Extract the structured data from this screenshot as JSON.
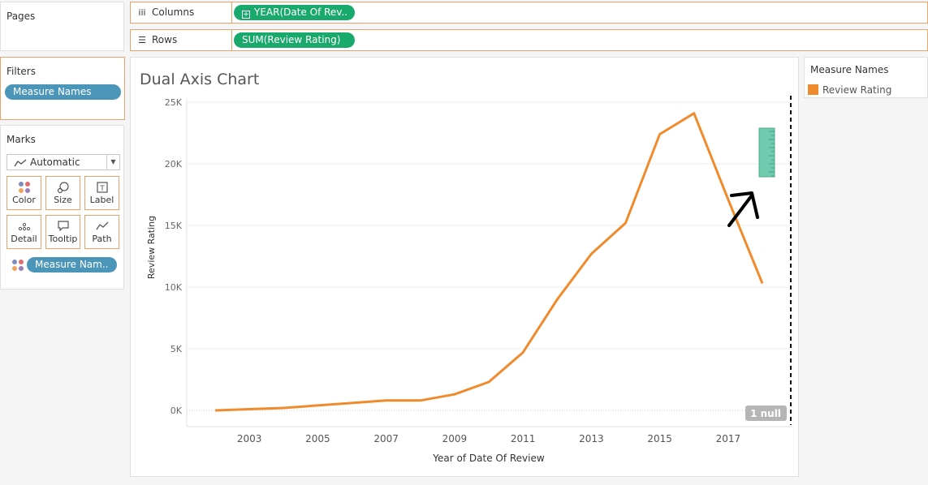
{
  "pages": {
    "title": "Pages"
  },
  "filters": {
    "title": "Filters",
    "pill": "Measure Names"
  },
  "marks": {
    "title": "Marks",
    "mark_type": "Automatic",
    "buttons": [
      {
        "name": "color",
        "label": "Color",
        "icon": "color-dots-icon"
      },
      {
        "name": "size",
        "label": "Size",
        "icon": "size-icon"
      },
      {
        "name": "label",
        "label": "Label",
        "icon": "label-icon"
      },
      {
        "name": "detail",
        "label": "Detail",
        "icon": "detail-icon"
      },
      {
        "name": "tooltip",
        "label": "Tooltip",
        "icon": "tooltip-icon"
      },
      {
        "name": "path",
        "label": "Path",
        "icon": "path-icon"
      }
    ],
    "color_pill": "Measure Nam.."
  },
  "columns": {
    "label": "Columns",
    "pill": "YEAR(Date Of Rev.."
  },
  "rows": {
    "label": "Rows",
    "pill": "SUM(Review Rating)"
  },
  "legend": {
    "title": "Measure Names",
    "item": "Review Rating",
    "color": "#f08b2d"
  },
  "null_badge": "1 null",
  "chart_data": {
    "type": "line",
    "title": "Dual Axis Chart",
    "xlabel": "Year of Date Of Review",
    "ylabel": "Review Rating",
    "x": [
      2002,
      2003,
      2004,
      2005,
      2006,
      2007,
      2008,
      2009,
      2010,
      2011,
      2012,
      2013,
      2014,
      2015,
      2016,
      2017,
      2018
    ],
    "series": [
      {
        "name": "Review Rating",
        "color": "#f08b2d",
        "values": [
          0,
          100,
          200,
          400,
          600,
          800,
          800,
          1300,
          2300,
          4700,
          9000,
          12700,
          15200,
          22400,
          24100,
          17100,
          10300
        ]
      }
    ],
    "ylim": [
      0,
      25000
    ],
    "yticks": [
      0,
      5000,
      10000,
      15000,
      20000,
      25000
    ],
    "yticklabels": [
      "0K",
      "5K",
      "10K",
      "15K",
      "20K",
      "25K"
    ],
    "xticks": [
      2003,
      2005,
      2007,
      2009,
      2011,
      2013,
      2015,
      2017
    ],
    "xticklabels": [
      "2003",
      "2005",
      "2007",
      "2009",
      "2011",
      "2013",
      "2015",
      "2017"
    ],
    "grid": true
  }
}
